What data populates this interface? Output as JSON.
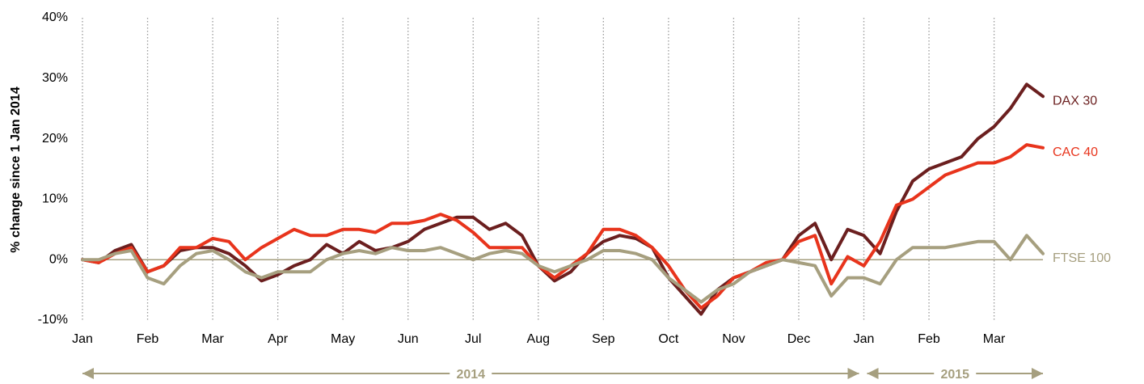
{
  "chart_data": {
    "type": "line",
    "y_label": "% change since 1 Jan 2014",
    "categories": [
      "Jan",
      null,
      null,
      null,
      "Feb",
      null,
      null,
      null,
      "Mar",
      null,
      null,
      null,
      "Apr",
      null,
      null,
      null,
      "May",
      null,
      null,
      null,
      "Jun",
      null,
      null,
      null,
      "Jul",
      null,
      null,
      null,
      "Aug",
      null,
      null,
      null,
      "Sep",
      null,
      null,
      null,
      "Oct",
      null,
      null,
      null,
      "Nov",
      null,
      null,
      null,
      "Dec",
      null,
      null,
      null,
      "Jan",
      null,
      null,
      null,
      "Feb",
      null,
      null,
      null,
      "Mar",
      null,
      null,
      null
    ],
    "year_labels": [
      "2014",
      "2015"
    ],
    "series": [
      {
        "name": "DAX 30",
        "color": "#6b1f1f",
        "values": [
          0,
          -0.5,
          1.5,
          2.5,
          -2,
          -1,
          1.5,
          2,
          2,
          1,
          -1,
          -3.5,
          -2.5,
          -1,
          0,
          2.5,
          1,
          3,
          1.5,
          2,
          3,
          5,
          6,
          7,
          7,
          5,
          6,
          4,
          -1,
          -3.5,
          -2,
          1,
          3,
          4,
          3.5,
          2,
          -3,
          -6,
          -9,
          -5,
          -3,
          -2,
          -1,
          0,
          4,
          6,
          0,
          5,
          4,
          1,
          8,
          13,
          15,
          16,
          17,
          20,
          22,
          25,
          29,
          27
        ]
      },
      {
        "name": "CAC 40",
        "color": "#e8341c",
        "values": [
          0,
          -0.5,
          1,
          2,
          -2,
          -1,
          2,
          2,
          3.5,
          3,
          0,
          2,
          3.5,
          5,
          4,
          4,
          5,
          5,
          4.5,
          6,
          6,
          6.5,
          7.5,
          6.5,
          4.5,
          2,
          2,
          2,
          -1,
          -3,
          -1,
          1,
          5,
          5,
          4,
          2,
          -1,
          -5,
          -8,
          -6,
          -3,
          -2,
          -0.5,
          0,
          3,
          4,
          -4,
          0.5,
          -1,
          3,
          9,
          10,
          12,
          14,
          15,
          16,
          16,
          17,
          19,
          18.5
        ]
      },
      {
        "name": "FTSE 100",
        "color": "#a69f7f",
        "values": [
          0,
          0,
          1,
          1.5,
          -3,
          -4,
          -1,
          1,
          1.5,
          0,
          -2,
          -3,
          -2,
          -2,
          -2,
          0,
          1,
          1.5,
          1,
          2,
          1.5,
          1.5,
          2,
          1,
          0,
          1,
          1.5,
          1,
          -1,
          -2,
          -1,
          0,
          1.5,
          1.5,
          1,
          0,
          -3,
          -5,
          -7,
          -5,
          -4,
          -2,
          -1,
          0,
          -0.5,
          -1,
          -6,
          -3,
          -3,
          -4,
          0,
          2,
          2,
          2,
          2.5,
          3,
          3,
          0,
          4,
          1
        ]
      }
    ],
    "ylim": [
      -10,
      40
    ],
    "yticks": [
      {
        "value": -10,
        "label": "-10%"
      },
      {
        "value": 0,
        "label": "0%"
      },
      {
        "value": 10,
        "label": "10%"
      },
      {
        "value": 20,
        "label": "20%"
      },
      {
        "value": 30,
        "label": "30%"
      },
      {
        "value": 40,
        "label": "40%"
      }
    ],
    "grid": true
  }
}
